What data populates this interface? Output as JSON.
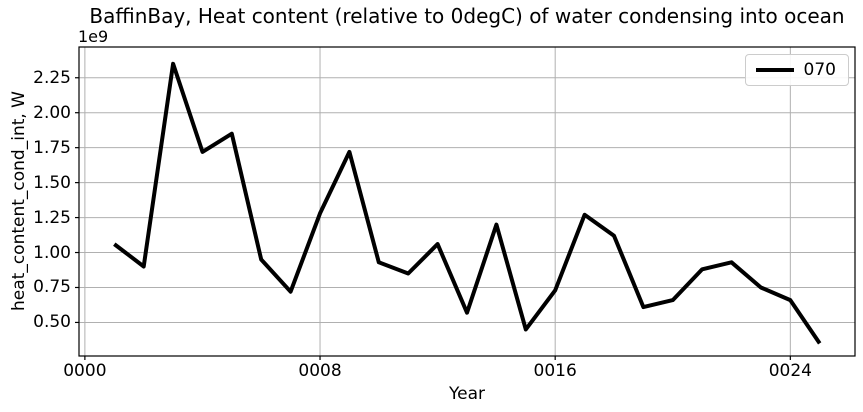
{
  "chart_data": {
    "type": "line",
    "title": "BaffinBay, Heat content (relative to 0degC) of water condensing into ocean",
    "xlabel": "Year",
    "ylabel": "heat_content_cond_int, W",
    "offset_text": "1e9",
    "values_scale": 1000000000.0,
    "x": [
      1,
      2,
      3,
      4,
      5,
      6,
      7,
      8,
      9,
      10,
      11,
      12,
      13,
      14,
      15,
      16,
      17,
      18,
      19,
      20,
      21,
      22,
      23,
      24,
      25
    ],
    "series": [
      {
        "name": "070",
        "values": [
          1.06,
          0.9,
          2.35,
          1.72,
          1.85,
          0.95,
          0.72,
          1.28,
          1.72,
          0.93,
          0.85,
          1.06,
          0.57,
          1.2,
          0.45,
          0.73,
          1.27,
          1.12,
          0.61,
          0.66,
          0.88,
          0.93,
          0.75,
          0.66,
          0.35
        ]
      }
    ],
    "x_ticks": {
      "values": [
        0,
        8,
        16,
        24
      ],
      "labels": [
        "0000",
        "0008",
        "0016",
        "0024"
      ]
    },
    "y_ticks": {
      "values": [
        0.5,
        0.75,
        1.0,
        1.25,
        1.5,
        1.75,
        2.0,
        2.25
      ],
      "labels": [
        "0.50",
        "0.75",
        "1.00",
        "1.25",
        "1.50",
        "1.75",
        "2.00",
        "2.25"
      ]
    },
    "xlim": [
      -0.2,
      26.2
    ],
    "ylim": [
      0.26,
      2.47
    ],
    "grid": true,
    "legend": {
      "position": "upper right",
      "entries": [
        {
          "label": "070",
          "color": "#000000",
          "linewidth": 4
        }
      ]
    },
    "colors": {
      "line": "#000000",
      "grid": "#b0b0b0",
      "spine": "#000000",
      "background": "#ffffff",
      "legend_border": "#cccccc"
    }
  }
}
